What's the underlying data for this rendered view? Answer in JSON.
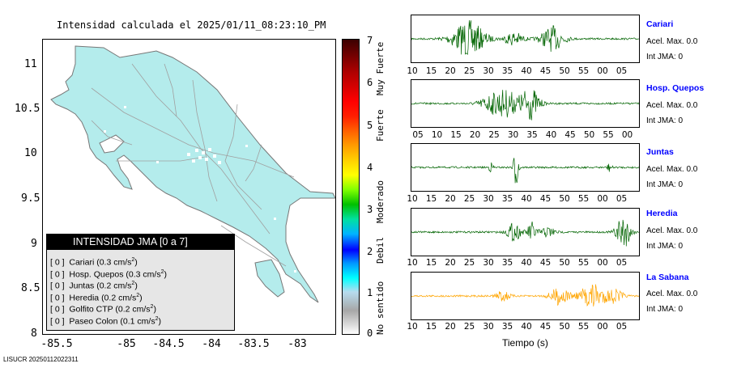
{
  "title": "Intensidad calculada el 2025/01/11_08:23:10_PM",
  "map": {
    "y_ticks": [
      "11",
      "10.5",
      "10",
      "9.5",
      "9",
      "8.5",
      "8"
    ],
    "x_ticks": [
      "-85.5",
      "-85",
      "-84.5",
      "-84",
      "-83.5",
      "-83"
    ],
    "land_color": "#b4ecec"
  },
  "legend": {
    "title": "INTENSIDAD JMA [0 a 7]",
    "rows": [
      {
        "level": "[ 0 ]",
        "station": "Cariari",
        "accel": "(0.3 cm/s",
        "sup": "2",
        "close": ")"
      },
      {
        "level": "[ 0 ]",
        "station": "Hosp. Quepos",
        "accel": "(0.3 cm/s",
        "sup": "2",
        "close": ")"
      },
      {
        "level": "[ 0 ]",
        "station": "Juntas",
        "accel": "(0.2 cm/s",
        "sup": "2",
        "close": ")"
      },
      {
        "level": "[ 0 ]",
        "station": "Heredia",
        "accel": "(0.2 cm/s",
        "sup": "2",
        "close": ")"
      },
      {
        "level": "[ 0 ]",
        "station": "Golfito CTP",
        "accel": "(0.2 cm/s",
        "sup": "2",
        "close": ")"
      },
      {
        "level": "[ 0 ]",
        "station": "Paseo Colon",
        "accel": "(0.1 cm/s",
        "sup": "2",
        "close": ")"
      }
    ]
  },
  "colorbar": {
    "ticks": [
      "7",
      "6",
      "5",
      "4",
      "3",
      "2",
      "1",
      "0"
    ],
    "labels": [
      "Muy Fuerte",
      "Fuerte",
      "Moderado",
      "Debil",
      "No sentido"
    ]
  },
  "waveforms": [
    {
      "name": "Cariari",
      "accel_label": "Acel. Max. 0.0",
      "jma_label": "Int JMA: 0",
      "color": "#006400",
      "ticks": [
        "10",
        "15",
        "20",
        "25",
        "30",
        "35",
        "40",
        "45",
        "50",
        "55",
        "00",
        "05"
      ]
    },
    {
      "name": "Hosp. Quepos",
      "accel_label": "Acel. Max. 0.0",
      "jma_label": "Int JMA: 0",
      "color": "#006400",
      "ticks": [
        "05",
        "10",
        "15",
        "20",
        "25",
        "30",
        "35",
        "40",
        "45",
        "50",
        "55",
        "00"
      ]
    },
    {
      "name": "Juntas",
      "accel_label": "Acel. Max. 0.0",
      "jma_label": "Int JMA: 0",
      "color": "#006400",
      "ticks": [
        "10",
        "15",
        "20",
        "25",
        "30",
        "35",
        "40",
        "45",
        "50",
        "55",
        "00",
        "05"
      ]
    },
    {
      "name": "Heredia",
      "accel_label": "Acel. Max. 0.0",
      "jma_label": "Int JMA: 0",
      "color": "#006400",
      "ticks": [
        "10",
        "15",
        "20",
        "25",
        "30",
        "35",
        "40",
        "45",
        "50",
        "55",
        "00",
        "05"
      ]
    },
    {
      "name": "La Sabana",
      "accel_label": "Acel. Max. 0.0",
      "jma_label": "Int JMA: 0",
      "color": "#ffa500",
      "ticks": [
        "10",
        "15",
        "20",
        "25",
        "30",
        "35",
        "40",
        "45",
        "50",
        "55",
        "00",
        "05"
      ]
    }
  ],
  "x_axis_label": "Tiempo (s)",
  "footer": "LISUCR 20250112022311"
}
